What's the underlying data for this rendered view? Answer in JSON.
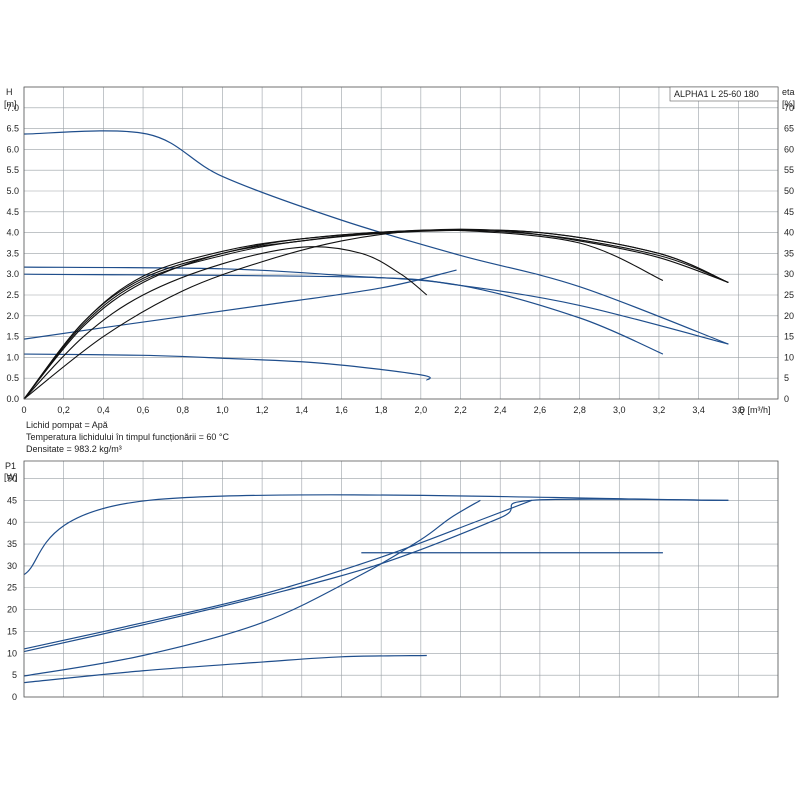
{
  "colors": {
    "blue": "#1f4e8c",
    "black": "#111111"
  },
  "chart_data": [
    {
      "type": "line",
      "panel": "head-efficiency",
      "title": "ALPHA1 L 25-60  180",
      "xlabel": "Q [m³/h]",
      "ylabel": [
        "H",
        "[m]"
      ],
      "y2label": [
        "eta",
        "[%]"
      ],
      "xlim": [
        0,
        3.8
      ],
      "ylim": [
        0,
        7.5
      ],
      "y2lim": [
        0,
        75
      ],
      "grid": true,
      "x_ticks": [
        "0",
        "0,2",
        "0,4",
        "0,6",
        "0,8",
        "1,0",
        "1,2",
        "1,4",
        "1,6",
        "1,8",
        "2,0",
        "2,2",
        "2,4",
        "2,6",
        "2,8",
        "3,0",
        "3,2",
        "3,4",
        "3,6"
      ],
      "y_ticks": [
        "0.0",
        "0.5",
        "1.0",
        "1.5",
        "2.0",
        "2.5",
        "3.0",
        "3.5",
        "4.0",
        "4.5",
        "5.0",
        "5.5",
        "6.0",
        "6.5",
        "7.0"
      ],
      "y2_ticks": [
        "0",
        "5",
        "10",
        "15",
        "20",
        "25",
        "30",
        "35",
        "40",
        "45",
        "50",
        "55",
        "60",
        "65",
        "70"
      ],
      "notes": [
        "Lichid pompat = Apă",
        "Temperatura lichidului în timpul funcționării = 60 °C",
        "Densitate = 983.2 kg/m³"
      ],
      "series": [
        {
          "color": "blue",
          "axis": "y",
          "points": [
            [
              0,
              6.37
            ],
            [
              0.62,
              6.37
            ],
            [
              1.0,
              5.35
            ],
            [
              1.6,
              4.3
            ],
            [
              2.2,
              3.45
            ],
            [
              2.8,
              2.7
            ],
            [
              3.55,
              1.32
            ]
          ]
        },
        {
          "color": "blue",
          "axis": "y",
          "points": [
            [
              0,
              3.17
            ],
            [
              1.0,
              3.13
            ],
            [
              1.6,
              2.97
            ],
            [
              2.2,
              2.73
            ],
            [
              2.8,
              1.95
            ],
            [
              3.22,
              1.08
            ]
          ]
        },
        {
          "color": "blue",
          "axis": "y",
          "points": [
            [
              0,
              3.0
            ],
            [
              1.7,
              2.93
            ],
            [
              2.2,
              2.73
            ],
            [
              2.8,
              2.25
            ],
            [
              3.55,
              1.32
            ]
          ]
        },
        {
          "color": "blue",
          "axis": "y",
          "points": [
            [
              0,
              1.08
            ],
            [
              0.6,
              1.05
            ],
            [
              1.0,
              0.98
            ],
            [
              1.5,
              0.86
            ],
            [
              2.0,
              0.58
            ],
            [
              2.03,
              0.45
            ]
          ]
        },
        {
          "color": "blue",
          "axis": "y",
          "points": [
            [
              0,
              1.44
            ],
            [
              0.6,
              1.85
            ],
            [
              1.2,
              2.25
            ],
            [
              1.8,
              2.67
            ],
            [
              2.18,
              3.1
            ]
          ]
        },
        {
          "color": "black",
          "axis": "y2",
          "points": [
            [
              0,
              0
            ],
            [
              0.3,
              15
            ],
            [
              0.6,
              25
            ],
            [
              1.0,
              32.5
            ],
            [
              1.4,
              36.5
            ],
            [
              1.7,
              35
            ],
            [
              1.9,
              30
            ],
            [
              2.03,
              25
            ]
          ]
        },
        {
          "color": "black",
          "axis": "y2",
          "points": [
            [
              0,
              0
            ],
            [
              0.3,
              17.5
            ],
            [
              0.6,
              28
            ],
            [
              1.0,
              35
            ],
            [
              1.4,
              38
            ],
            [
              1.8,
              40
            ],
            [
              2.2,
              40.5
            ],
            [
              2.8,
              37.5
            ],
            [
              3.22,
              28.5
            ]
          ]
        },
        {
          "color": "black",
          "axis": "y2",
          "points": [
            [
              0,
              0
            ],
            [
              0.3,
              18.5
            ],
            [
              0.6,
              29.5
            ],
            [
              1.0,
              35.5
            ],
            [
              1.4,
              38.5
            ],
            [
              2.0,
              40.5
            ],
            [
              2.6,
              39.5
            ],
            [
              3.2,
              34.5
            ],
            [
              3.55,
              28
            ]
          ]
        },
        {
          "color": "black",
          "axis": "y2",
          "points": [
            [
              0,
              0
            ],
            [
              0.3,
              18.5
            ],
            [
              0.6,
              29
            ],
            [
              1.0,
              35
            ],
            [
              1.4,
              38.5
            ],
            [
              2.0,
              40.5
            ],
            [
              2.6,
              40
            ],
            [
              3.2,
              35
            ],
            [
              3.55,
              28
            ]
          ]
        },
        {
          "color": "black",
          "axis": "y2",
          "points": [
            [
              0,
              0
            ],
            [
              0.3,
              18
            ],
            [
              0.6,
              28.5
            ],
            [
              1.0,
              34.5
            ],
            [
              1.4,
              38
            ],
            [
              2.0,
              40.3
            ],
            [
              2.6,
              40
            ],
            [
              3.2,
              35
            ],
            [
              3.55,
              28
            ]
          ]
        },
        {
          "color": "black",
          "axis": "y2",
          "points": [
            [
              0,
              0
            ],
            [
              0.4,
              15
            ],
            [
              0.8,
              26
            ],
            [
              1.2,
              33
            ],
            [
              1.6,
              38
            ],
            [
              2.0,
              40.5
            ],
            [
              2.4,
              40.5
            ],
            [
              2.8,
              38
            ],
            [
              3.2,
              34
            ],
            [
              3.55,
              28
            ]
          ]
        }
      ]
    },
    {
      "type": "line",
      "panel": "power",
      "xlabel": "",
      "ylabel": [
        "P1",
        "[W]"
      ],
      "xlim": [
        0,
        3.8
      ],
      "ylim": [
        0,
        54
      ],
      "grid": true,
      "y_ticks": [
        "0",
        "5",
        "10",
        "15",
        "20",
        "25",
        "30",
        "35",
        "40",
        "45",
        "50"
      ],
      "series": [
        {
          "color": "blue",
          "points": [
            [
              0,
              28
            ],
            [
              0.63,
              45
            ],
            [
              3.55,
              45
            ]
          ]
        },
        {
          "color": "blue",
          "points": [
            [
              0,
              11
            ],
            [
              0.6,
              17
            ],
            [
              1.2,
              23.5
            ],
            [
              1.8,
              32
            ],
            [
              2.3,
              40.5
            ],
            [
              2.56,
              45
            ]
          ]
        },
        {
          "color": "blue",
          "points": [
            [
              0,
              10.4
            ],
            [
              0.6,
              16.5
            ],
            [
              1.2,
              23
            ],
            [
              1.8,
              30.5
            ],
            [
              2.4,
              41
            ],
            [
              2.56,
              45
            ],
            [
              3.55,
              45
            ]
          ]
        },
        {
          "color": "blue",
          "points": [
            [
              0,
              4.8
            ],
            [
              0.6,
              9.5
            ],
            [
              1.2,
              17
            ],
            [
              1.7,
              28
            ],
            [
              2.0,
              36
            ],
            [
              2.15,
              41
            ],
            [
              2.3,
              45
            ]
          ]
        },
        {
          "color": "blue",
          "points": [
            [
              0,
              3.3
            ],
            [
              0.6,
              6
            ],
            [
              1.2,
              8
            ],
            [
              1.6,
              9.2
            ],
            [
              2.03,
              9.5
            ]
          ]
        },
        {
          "color": "blue",
          "points": [
            [
              1.7,
              33
            ],
            [
              2.8,
              33
            ],
            [
              3.22,
              33
            ]
          ]
        }
      ]
    }
  ]
}
